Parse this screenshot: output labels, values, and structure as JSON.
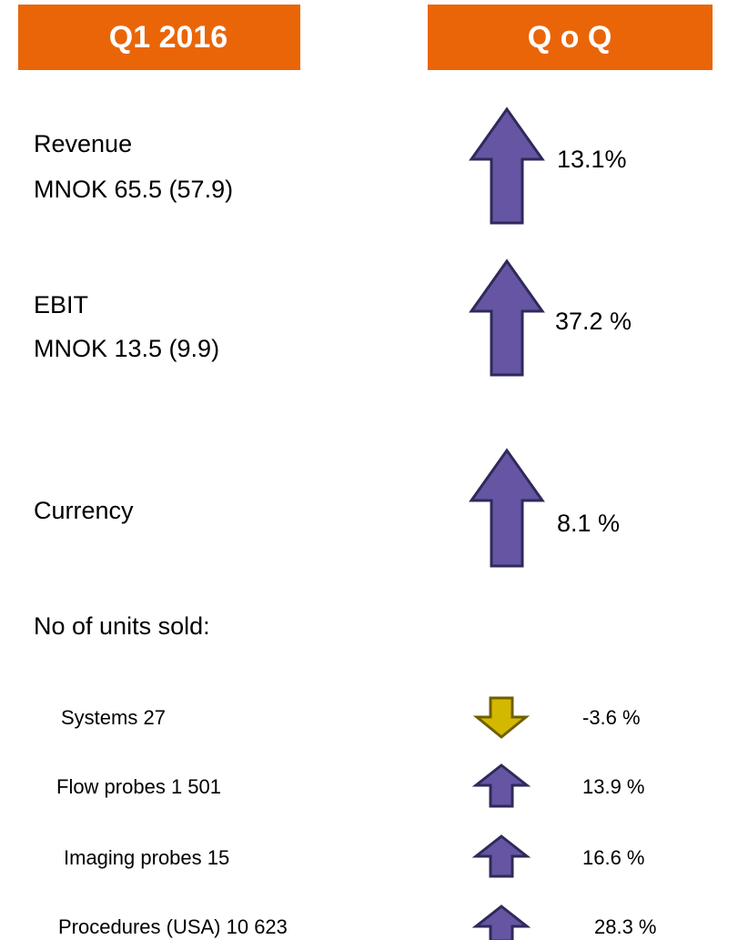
{
  "header": {
    "left": "Q1 2016",
    "right": "Q o Q"
  },
  "rows": [
    {
      "lines": [
        "Revenue",
        "MNOK 65.5 (57.9)"
      ],
      "change": "13.1%"
    },
    {
      "lines": [
        "EBIT",
        "MNOK 13.5 (9.9)"
      ],
      "change": "37.2 %"
    },
    {
      "lines": [
        "Currency"
      ],
      "change": "8.1 %"
    }
  ],
  "units": {
    "title": "No of units sold:",
    "items": [
      {
        "label": "Systems 27",
        "change": "-3.6 %"
      },
      {
        "label": "Flow probes 1 501",
        "change": "13.9 %"
      },
      {
        "label": "Imaging probes 15",
        "change": "16.6 %"
      },
      {
        "label": "Procedures (USA) 10 623",
        "change": "28.3 %"
      }
    ]
  }
}
